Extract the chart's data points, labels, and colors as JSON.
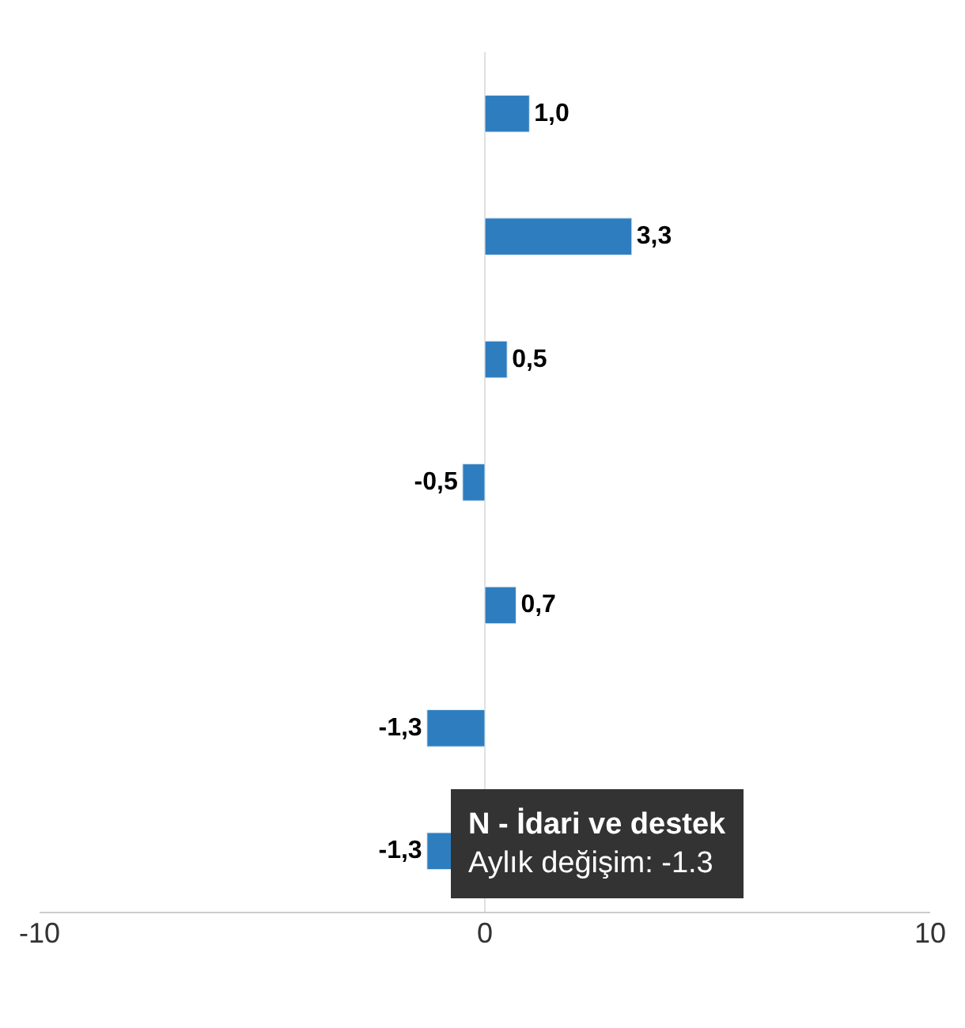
{
  "chart_data": {
    "type": "bar",
    "orientation": "horizontal",
    "categories": [
      null,
      null,
      null,
      null,
      null,
      null,
      null
    ],
    "series": [
      {
        "color": "#2e7ebf",
        "values": [
          1.0,
          3.3,
          0.5,
          -0.5,
          0.7,
          -1.3,
          -1.3
        ],
        "value_labels": [
          "1,0",
          "3,3",
          "0,5",
          "-0,5",
          "0,7",
          "-1,3",
          "-1,3"
        ]
      }
    ],
    "xlim": [
      -10,
      10
    ],
    "xticks": [
      -10,
      0,
      10
    ],
    "annotations": [
      "N - İdari ve destek",
      "Aylık değişim: -1.3"
    ]
  }
}
